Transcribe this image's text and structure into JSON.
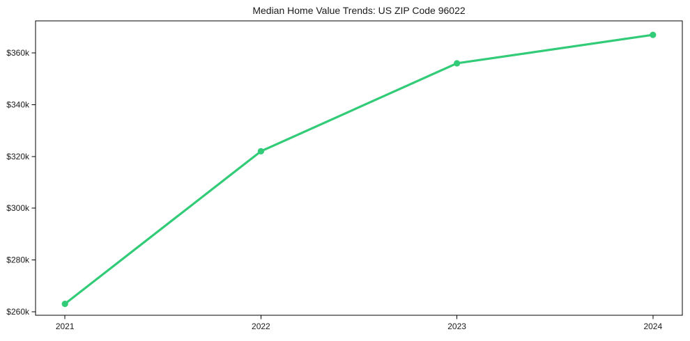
{
  "chart_data": {
    "type": "line",
    "title": "Median Home Value Trends: US ZIP Code 96022",
    "categories": [
      "2021",
      "2022",
      "2023",
      "2024"
    ],
    "series": [
      {
        "values": [
          263000,
          322000,
          356000,
          367000
        ],
        "color": "#32cb77",
        "marker": "circle"
      }
    ],
    "xlabel": "",
    "ylabel": "",
    "ylim": [
      258600,
      372400
    ],
    "yticks": [
      260000,
      280000,
      300000,
      320000,
      340000,
      360000
    ],
    "ytick_labels": [
      "$260k",
      "$280k",
      "$300k",
      "$320k",
      "$340k",
      "$360k"
    ],
    "grid": false,
    "legend": "none",
    "frame": "full-box",
    "spine_color": "#000000",
    "text_color": "#1a1a1a",
    "background_color": "#ffffff"
  }
}
